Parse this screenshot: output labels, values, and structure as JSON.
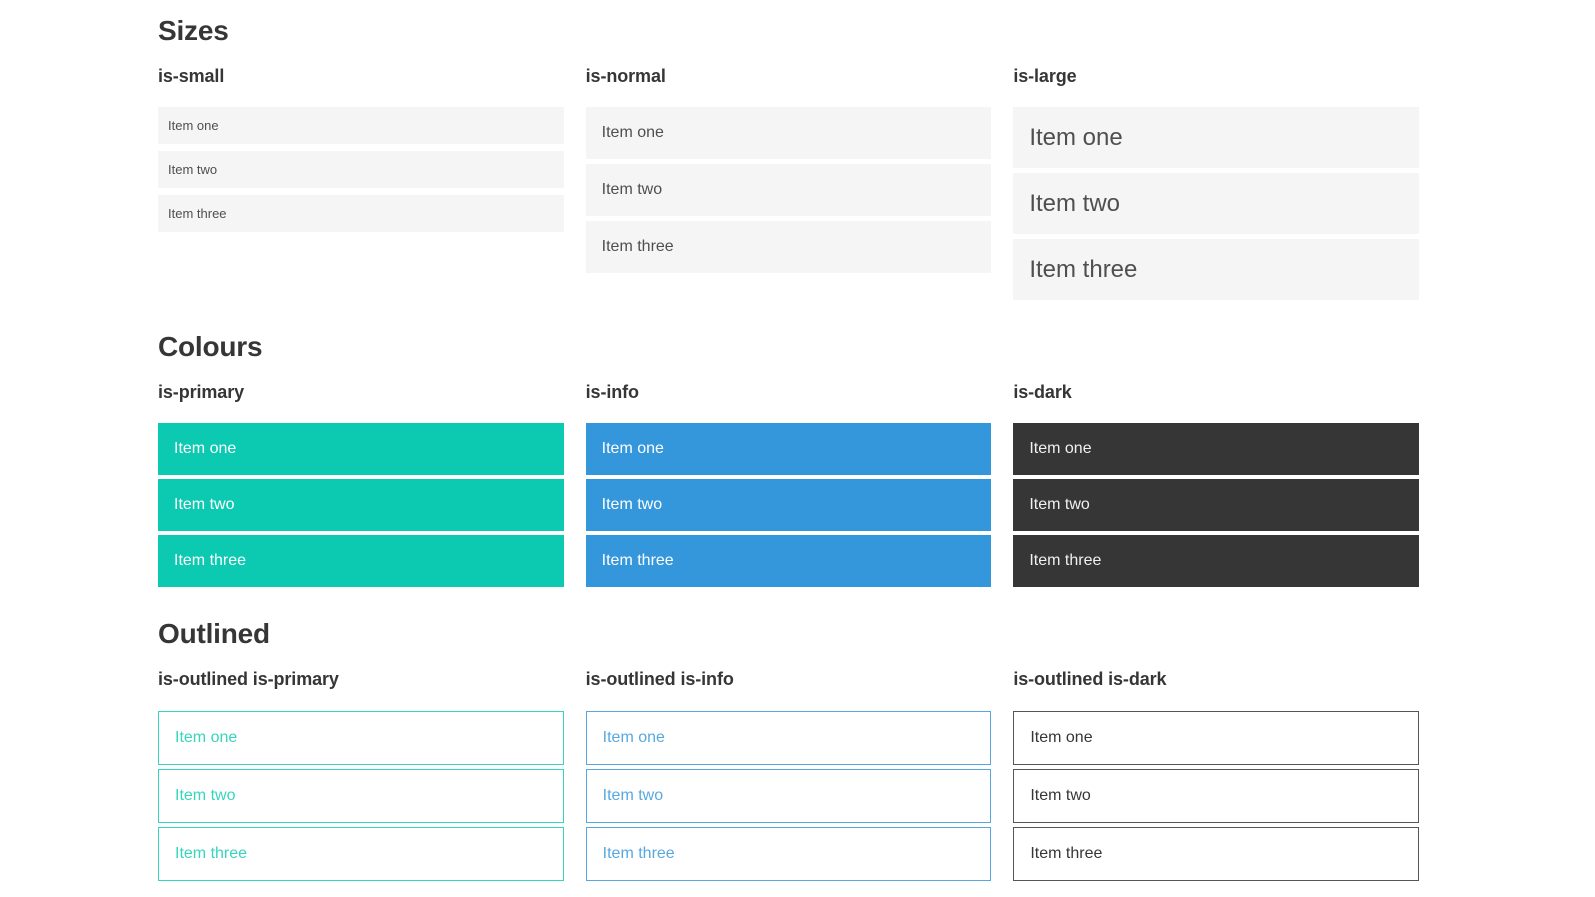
{
  "colors": {
    "primary": "#0cc9b2",
    "info": "#3497db",
    "dark": "#363636",
    "default_bg": "#f5f5f5",
    "default_text": "#4f4f4f",
    "heading_text": "#363636",
    "outlined_primary": "#38d5be",
    "outlined_info": "#58a8e0",
    "outlined_dark_border": "#565656",
    "outlined_dark_text": "#363636"
  },
  "sections": [
    {
      "title": "Sizes",
      "columns": [
        {
          "heading": "is-small",
          "items": [
            "Item one",
            "Item two",
            "Item three"
          ]
        },
        {
          "heading": "is-normal",
          "items": [
            "Item one",
            "Item two",
            "Item three"
          ]
        },
        {
          "heading": "is-large",
          "items": [
            "Item one",
            "Item two",
            "Item three"
          ]
        }
      ]
    },
    {
      "title": "Colours",
      "columns": [
        {
          "heading": "is-primary",
          "items": [
            "Item one",
            "Item two",
            "Item three"
          ]
        },
        {
          "heading": "is-info",
          "items": [
            "Item one",
            "Item two",
            "Item three"
          ]
        },
        {
          "heading": "is-dark",
          "items": [
            "Item one",
            "Item two",
            "Item three"
          ]
        }
      ]
    },
    {
      "title": "Outlined",
      "columns": [
        {
          "heading": "is-outlined is-primary",
          "items": [
            "Item one",
            "Item two",
            "Item three"
          ]
        },
        {
          "heading": "is-outlined is-info",
          "items": [
            "Item one",
            "Item two",
            "Item three"
          ]
        },
        {
          "heading": "is-outlined is-dark",
          "items": [
            "Item one",
            "Item two",
            "Item three"
          ]
        }
      ]
    }
  ]
}
